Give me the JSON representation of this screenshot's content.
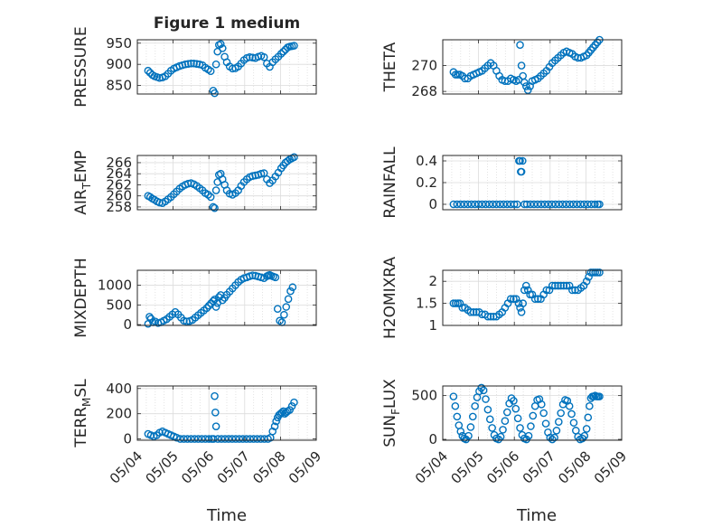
{
  "figure": {
    "title": "Figure 1 medium"
  },
  "style": {
    "marker_color": "#0072BD",
    "grid_color": "#dcdcdc",
    "axis_color": "#262626"
  },
  "chart_data": [
    {
      "type": "scatter",
      "ylabel": "PRESSURE",
      "ylim": [
        830,
        958
      ],
      "yticks": [
        850,
        900,
        950
      ],
      "x": [
        4.3,
        4.36,
        4.42,
        4.48,
        4.55,
        4.62,
        4.7,
        4.78,
        4.86,
        4.94,
        5.02,
        5.1,
        5.18,
        5.26,
        5.34,
        5.42,
        5.5,
        5.58,
        5.66,
        5.74,
        5.82,
        5.9,
        5.98,
        6.05,
        6.12,
        6.16,
        6.2,
        6.24,
        6.28,
        6.33,
        6.38,
        6.44,
        6.5,
        6.58,
        6.66,
        6.74,
        6.82,
        6.9,
        6.98,
        7.06,
        7.14,
        7.22,
        7.3,
        7.38,
        7.46,
        7.54,
        7.62,
        7.7,
        7.78,
        7.86,
        7.94,
        8.02,
        8.08,
        8.14,
        8.2,
        8.26,
        8.32,
        8.38
      ],
      "y": [
        885,
        880,
        875,
        872,
        870,
        868,
        869,
        872,
        878,
        885,
        890,
        893,
        896,
        898,
        900,
        901,
        902,
        902,
        901,
        900,
        898,
        892,
        888,
        884,
        838,
        832,
        900,
        930,
        946,
        948,
        938,
        918,
        905,
        895,
        890,
        891,
        895,
        902,
        910,
        915,
        917,
        916,
        915,
        918,
        920,
        917,
        902,
        894,
        905,
        912,
        918,
        925,
        930,
        935,
        940,
        942,
        943,
        944
      ]
    },
    {
      "type": "scatter",
      "ylabel": "THETA",
      "ylim": [
        267.8,
        272.0
      ],
      "yticks": [
        268,
        270
      ],
      "x": [
        4.3,
        4.36,
        4.42,
        4.48,
        4.55,
        4.62,
        4.7,
        4.78,
        4.86,
        4.94,
        5.02,
        5.1,
        5.18,
        5.26,
        5.34,
        5.42,
        5.5,
        5.58,
        5.66,
        5.74,
        5.82,
        5.9,
        5.98,
        6.05,
        6.12,
        6.16,
        6.2,
        6.24,
        6.28,
        6.33,
        6.38,
        6.44,
        6.5,
        6.58,
        6.66,
        6.74,
        6.82,
        6.9,
        6.98,
        7.06,
        7.14,
        7.22,
        7.3,
        7.38,
        7.46,
        7.54,
        7.62,
        7.7,
        7.78,
        7.86,
        7.94,
        8.02,
        8.08,
        8.14,
        8.2,
        8.26,
        8.32,
        8.38
      ],
      "y": [
        269.5,
        269.3,
        269.3,
        269.3,
        269.2,
        269.0,
        269.0,
        269.2,
        269.3,
        269.4,
        269.5,
        269.6,
        269.8,
        270.0,
        270.2,
        270.0,
        269.6,
        269.2,
        268.9,
        268.8,
        268.8,
        269.0,
        268.9,
        268.8,
        268.9,
        271.6,
        270.0,
        269.2,
        268.7,
        268.4,
        268.1,
        268.4,
        268.8,
        268.9,
        269.0,
        269.2,
        269.4,
        269.6,
        269.9,
        270.2,
        270.4,
        270.6,
        270.8,
        271.0,
        271.1,
        271.0,
        270.9,
        270.7,
        270.6,
        270.6,
        270.7,
        270.8,
        271.0,
        271.2,
        271.4,
        271.6,
        271.8,
        272.0
      ]
    },
    {
      "type": "scatter",
      "ylabel": "AIR_TEMP",
      "ylim": [
        257.5,
        267.3
      ],
      "yticks": [
        258,
        260,
        262,
        264,
        266
      ],
      "x": [
        4.3,
        4.36,
        4.42,
        4.48,
        4.55,
        4.62,
        4.7,
        4.78,
        4.86,
        4.94,
        5.02,
        5.1,
        5.18,
        5.26,
        5.34,
        5.42,
        5.5,
        5.58,
        5.66,
        5.74,
        5.82,
        5.9,
        5.98,
        6.05,
        6.12,
        6.16,
        6.2,
        6.24,
        6.28,
        6.33,
        6.38,
        6.44,
        6.5,
        6.58,
        6.66,
        6.74,
        6.82,
        6.9,
        6.98,
        7.06,
        7.14,
        7.22,
        7.3,
        7.38,
        7.46,
        7.54,
        7.62,
        7.7,
        7.78,
        7.86,
        7.94,
        8.02,
        8.08,
        8.14,
        8.2,
        8.26,
        8.32,
        8.38
      ],
      "y": [
        260.0,
        259.8,
        259.5,
        259.3,
        259.0,
        258.8,
        258.7,
        259.0,
        259.4,
        259.8,
        260.3,
        260.8,
        261.3,
        261.7,
        262.0,
        262.2,
        262.3,
        262.1,
        261.8,
        261.4,
        261.0,
        260.5,
        260.2,
        259.8,
        258.0,
        257.8,
        261.0,
        262.5,
        263.8,
        264.0,
        263.0,
        262.0,
        261.0,
        260.4,
        260.2,
        260.5,
        261.0,
        261.8,
        262.5,
        263.0,
        263.4,
        263.6,
        263.7,
        263.8,
        264.0,
        264.1,
        263.0,
        262.3,
        262.8,
        263.5,
        264.2,
        265.0,
        265.5,
        266.0,
        266.3,
        266.6,
        266.8,
        267.0
      ]
    },
    {
      "type": "scatter",
      "ylabel": "RAINFALL",
      "ylim": [
        -0.05,
        0.45
      ],
      "yticks": [
        0,
        0.2,
        0.4
      ],
      "x": [
        4.3,
        4.4,
        4.5,
        4.6,
        4.7,
        4.8,
        4.9,
        5.0,
        5.1,
        5.2,
        5.3,
        5.4,
        5.5,
        5.6,
        5.7,
        5.8,
        5.9,
        6.0,
        6.08,
        6.13,
        6.16,
        6.18,
        6.2,
        6.23,
        6.28,
        6.35,
        6.45,
        6.55,
        6.65,
        6.75,
        6.85,
        6.95,
        7.05,
        7.15,
        7.25,
        7.35,
        7.45,
        7.55,
        7.65,
        7.75,
        7.85,
        7.95,
        8.05,
        8.15,
        8.25,
        8.33,
        8.38
      ],
      "y": [
        0,
        0,
        0,
        0,
        0,
        0,
        0,
        0,
        0,
        0,
        0,
        0,
        0,
        0,
        0,
        0,
        0,
        0,
        0,
        0.4,
        0.4,
        0.3,
        0.3,
        0.4,
        0,
        0,
        0,
        0,
        0,
        0,
        0,
        0,
        0,
        0,
        0,
        0,
        0,
        0,
        0,
        0,
        0,
        0,
        0,
        0,
        0,
        0,
        0
      ]
    },
    {
      "type": "scatter",
      "ylabel": "MIXDEPTH",
      "ylim": [
        -20,
        1380
      ],
      "yticks": [
        0,
        500,
        1000
      ],
      "x": [
        4.3,
        4.34,
        4.38,
        4.44,
        4.5,
        4.58,
        4.66,
        4.74,
        4.82,
        4.9,
        4.98,
        5.06,
        5.14,
        5.22,
        5.3,
        5.38,
        5.46,
        5.54,
        5.62,
        5.7,
        5.78,
        5.86,
        5.94,
        6.0,
        6.06,
        6.12,
        6.16,
        6.2,
        6.24,
        6.28,
        6.33,
        6.38,
        6.44,
        6.5,
        6.58,
        6.66,
        6.74,
        6.82,
        6.9,
        6.98,
        7.06,
        7.14,
        7.22,
        7.3,
        7.38,
        7.46,
        7.54,
        7.62,
        7.66,
        7.7,
        7.74,
        7.8,
        7.86,
        7.92,
        7.98,
        8.04,
        8.1,
        8.16,
        8.22,
        8.28,
        8.34
      ],
      "y": [
        20,
        200,
        150,
        60,
        80,
        40,
        60,
        100,
        140,
        200,
        260,
        320,
        260,
        180,
        100,
        80,
        90,
        120,
        180,
        240,
        300,
        360,
        420,
        480,
        540,
        600,
        640,
        450,
        550,
        700,
        750,
        620,
        680,
        760,
        840,
        920,
        1000,
        1080,
        1140,
        1180,
        1200,
        1230,
        1250,
        1240,
        1220,
        1200,
        1180,
        1230,
        1250,
        1260,
        1240,
        1220,
        1200,
        400,
        100,
        60,
        250,
        450,
        650,
        850,
        950
      ]
    },
    {
      "type": "scatter",
      "ylabel": "H2OMIXRA",
      "ylim": [
        1.0,
        2.25
      ],
      "yticks": [
        1,
        1.5,
        2
      ],
      "x": [
        4.3,
        4.36,
        4.42,
        4.48,
        4.55,
        4.62,
        4.7,
        4.78,
        4.86,
        4.94,
        5.02,
        5.1,
        5.18,
        5.26,
        5.34,
        5.42,
        5.5,
        5.58,
        5.66,
        5.74,
        5.82,
        5.9,
        5.98,
        6.05,
        6.12,
        6.16,
        6.2,
        6.24,
        6.28,
        6.33,
        6.38,
        6.44,
        6.5,
        6.58,
        6.66,
        6.74,
        6.82,
        6.9,
        6.98,
        7.06,
        7.14,
        7.22,
        7.3,
        7.38,
        7.46,
        7.54,
        7.62,
        7.7,
        7.78,
        7.86,
        7.94,
        8.02,
        8.08,
        8.14,
        8.2,
        8.26,
        8.32,
        8.38
      ],
      "y": [
        1.5,
        1.5,
        1.5,
        1.5,
        1.4,
        1.4,
        1.35,
        1.3,
        1.3,
        1.3,
        1.3,
        1.25,
        1.25,
        1.2,
        1.2,
        1.2,
        1.2,
        1.25,
        1.3,
        1.4,
        1.5,
        1.6,
        1.6,
        1.6,
        1.5,
        1.4,
        1.3,
        1.5,
        1.8,
        1.9,
        1.8,
        1.7,
        1.7,
        1.6,
        1.6,
        1.6,
        1.7,
        1.8,
        1.8,
        1.9,
        1.9,
        1.9,
        1.9,
        1.9,
        1.9,
        1.9,
        1.8,
        1.8,
        1.8,
        1.85,
        1.9,
        2.0,
        2.1,
        2.2,
        2.2,
        2.2,
        2.2,
        2.2
      ]
    },
    {
      "type": "scatter",
      "ylabel": "TERR_MSL",
      "ylim": [
        -10,
        420
      ],
      "yticks": [
        0,
        200,
        400
      ],
      "x": [
        4.3,
        4.38,
        4.46,
        4.54,
        4.62,
        4.7,
        4.78,
        4.86,
        4.94,
        5.02,
        5.1,
        5.2,
        5.3,
        5.4,
        5.5,
        5.6,
        5.7,
        5.8,
        5.9,
        6.0,
        6.08,
        6.13,
        6.16,
        6.18,
        6.2,
        6.25,
        6.35,
        6.45,
        6.55,
        6.65,
        6.75,
        6.85,
        6.95,
        7.05,
        7.15,
        7.25,
        7.35,
        7.45,
        7.55,
        7.65,
        7.72,
        7.78,
        7.84,
        7.88,
        7.92,
        7.96,
        8.0,
        8.04,
        8.08,
        8.12,
        8.16,
        8.2,
        8.26,
        8.32,
        8.38
      ],
      "y": [
        40,
        30,
        20,
        30,
        50,
        60,
        50,
        40,
        30,
        20,
        10,
        0,
        0,
        0,
        0,
        0,
        0,
        0,
        0,
        0,
        0,
        0,
        340,
        210,
        100,
        0,
        0,
        0,
        0,
        0,
        0,
        0,
        0,
        0,
        0,
        0,
        0,
        0,
        0,
        0,
        10,
        60,
        100,
        140,
        170,
        190,
        200,
        210,
        220,
        200,
        210,
        220,
        230,
        260,
        290
      ]
    },
    {
      "type": "scatter",
      "ylabel": "SUN_FLUX",
      "ylim": [
        -10,
        610
      ],
      "yticks": [
        0,
        500
      ],
      "x": [
        4.3,
        4.35,
        4.4,
        4.45,
        4.5,
        4.55,
        4.6,
        4.65,
        4.72,
        4.78,
        4.84,
        4.9,
        4.96,
        5.02,
        5.08,
        5.14,
        5.2,
        5.26,
        5.32,
        5.38,
        5.44,
        5.5,
        5.56,
        5.62,
        5.68,
        5.74,
        5.8,
        5.86,
        5.92,
        5.98,
        6.04,
        6.1,
        6.16,
        6.22,
        6.28,
        6.34,
        6.4,
        6.46,
        6.52,
        6.58,
        6.64,
        6.7,
        6.76,
        6.82,
        6.88,
        6.94,
        7.0,
        7.06,
        7.12,
        7.18,
        7.24,
        7.3,
        7.36,
        7.42,
        7.48,
        7.54,
        7.6,
        7.66,
        7.72,
        7.78,
        7.84,
        7.9,
        7.96,
        8.02,
        8.06,
        8.1,
        8.14,
        8.18,
        8.22,
        8.26,
        8.3,
        8.34,
        8.38
      ],
      "y": [
        490,
        380,
        260,
        160,
        90,
        40,
        10,
        0,
        40,
        140,
        260,
        380,
        480,
        550,
        590,
        560,
        460,
        340,
        230,
        130,
        50,
        10,
        0,
        30,
        110,
        210,
        310,
        410,
        470,
        440,
        350,
        240,
        130,
        50,
        10,
        0,
        40,
        150,
        270,
        380,
        450,
        460,
        400,
        300,
        180,
        80,
        20,
        0,
        20,
        100,
        200,
        300,
        400,
        450,
        440,
        380,
        290,
        190,
        100,
        30,
        0,
        10,
        40,
        120,
        250,
        380,
        470,
        490,
        490,
        500,
        490,
        490,
        490
      ]
    }
  ],
  "shared_axis": {
    "xlabel": "Time",
    "xlim": [
      4.0,
      9.0
    ],
    "xticks": [
      4,
      5,
      6,
      7,
      8,
      9
    ],
    "xticklabels": [
      "05/04",
      "05/05",
      "05/06",
      "05/07",
      "05/08",
      "05/09"
    ]
  }
}
